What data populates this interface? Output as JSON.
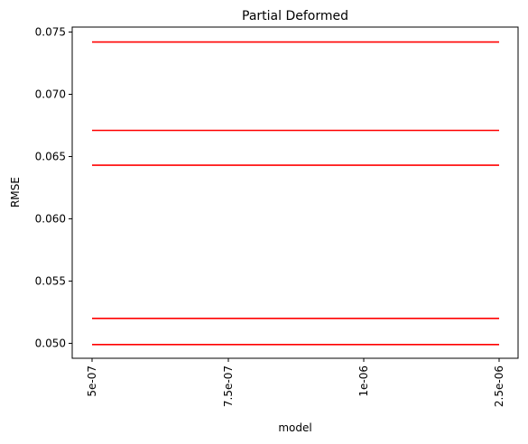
{
  "chart_data": {
    "type": "line",
    "title": "Partial Deformed",
    "xlabel": "model",
    "ylabel": "RMSE",
    "categories": [
      "5e-07",
      "7.5e-07",
      "1e-06",
      "2.5e-06"
    ],
    "ylim": [
      0.0488,
      0.0754
    ],
    "yticks": [
      "0.050",
      "0.055",
      "0.060",
      "0.065",
      "0.070",
      "0.075"
    ],
    "ytick_values": [
      0.05,
      0.055,
      0.06,
      0.065,
      0.07,
      0.075
    ],
    "grid": false,
    "line_color": "#ff0000",
    "series": [
      {
        "values": [
          0.0742,
          0.0742,
          0.0742,
          0.0742
        ]
      },
      {
        "values": [
          0.0671,
          0.0671,
          0.0671,
          0.0671
        ]
      },
      {
        "values": [
          0.0643,
          0.0643,
          0.0643,
          0.0643
        ]
      },
      {
        "values": [
          0.052,
          0.052,
          0.052,
          0.052
        ]
      },
      {
        "values": [
          0.0499,
          0.0499,
          0.0499,
          0.0499
        ]
      }
    ]
  }
}
